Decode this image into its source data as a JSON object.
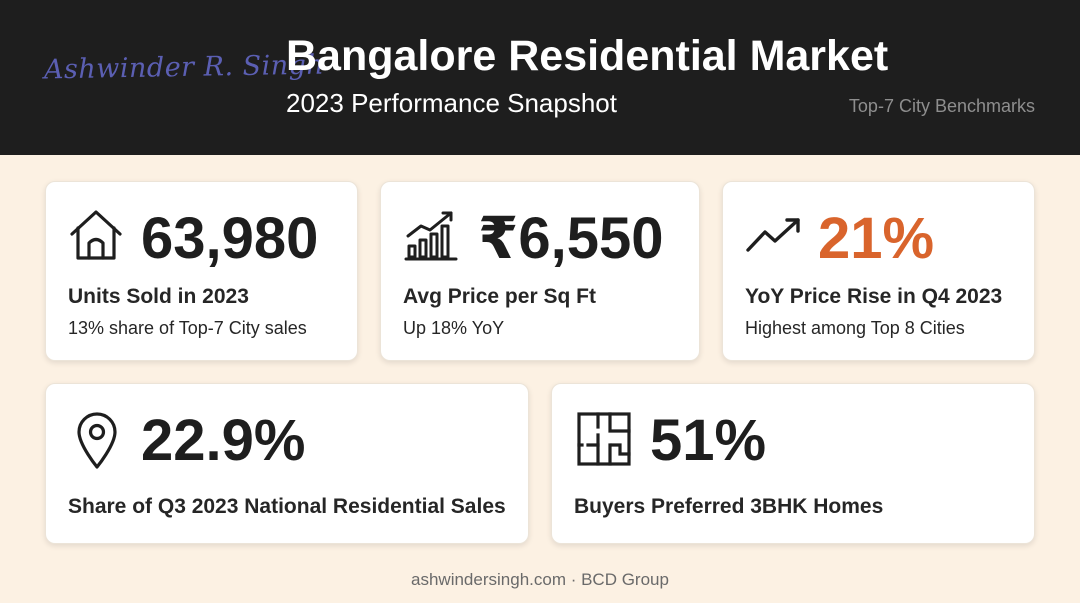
{
  "header": {
    "signature": "Ashwinder R. Singh",
    "title": "Bangalore Residential Market",
    "subtitle": "2023 Performance Snapshot",
    "benchmark": "Top-7 City Benchmarks"
  },
  "colors": {
    "header_bg": "#1e1e1e",
    "page_bg": "#fcf1e3",
    "accent": "#d9642c",
    "signature": "#5b5fb3"
  },
  "cards": [
    {
      "icon": "house-icon",
      "value": "63,980",
      "label": "Units Sold in 2023",
      "sub": "13% share of Top-7 City sales"
    },
    {
      "icon": "bar-chart-growth-icon",
      "value": "₹6,550",
      "label": "Avg Price per Sq Ft",
      "sub": "Up 18% YoY"
    },
    {
      "icon": "trend-up-icon",
      "value": "21%",
      "label": "YoY Price Rise in Q4 2023",
      "sub": "Highest among Top 8 Cities"
    },
    {
      "icon": "location-pin-icon",
      "value": "22.9%",
      "label": "Share of Q3 2023 National Residential Sales"
    },
    {
      "icon": "floor-plan-icon",
      "value": "51%",
      "label": "Buyers Preferred 3BHK Homes"
    }
  ],
  "footer": {
    "text": "ashwindersingh.com · BCD Group"
  }
}
